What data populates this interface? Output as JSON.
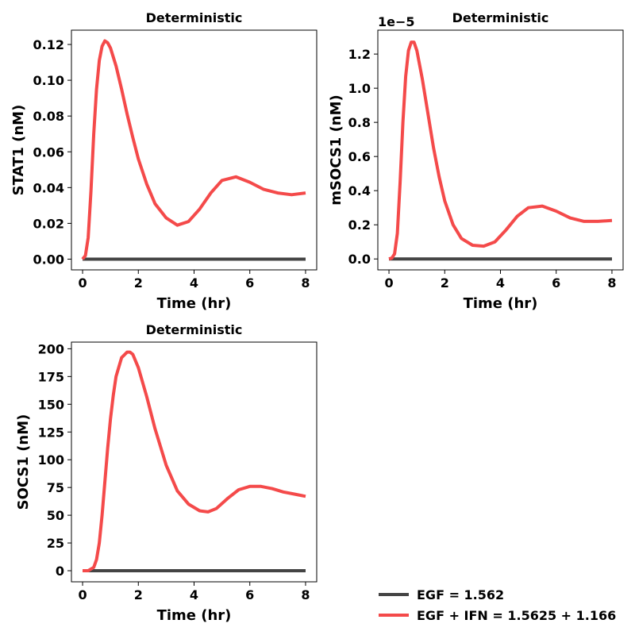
{
  "colors": {
    "egf": "#444444",
    "egf_ifn": "#f44a4a"
  },
  "legend": {
    "items": [
      {
        "label": "EGF = 1.562",
        "color": "#444444"
      },
      {
        "label": "EGF + IFN = 1.5625 + 1.166",
        "color": "#f44a4a"
      }
    ]
  },
  "chart_data": [
    {
      "type": "line",
      "title": "Deterministic",
      "xlabel": "Time (hr)",
      "ylabel": "STAT1 (nM)",
      "xlim": [
        -0.4,
        8.4
      ],
      "ylim": [
        -0.006,
        0.128
      ],
      "xticks": [
        0,
        2,
        4,
        6,
        8
      ],
      "xtick_labels": [
        "0",
        "2",
        "4",
        "6",
        "8"
      ],
      "yticks": [
        0,
        0.02,
        0.04,
        0.06,
        0.08,
        0.1,
        0.12
      ],
      "ytick_labels": [
        "0.00",
        "0.02",
        "0.04",
        "0.06",
        "0.08",
        "0.10",
        "0.12"
      ],
      "offset_text": "",
      "series": [
        {
          "name": "EGF = 1.562",
          "x": [
            0,
            8
          ],
          "y": [
            0,
            0
          ]
        },
        {
          "name": "EGF + IFN = 1.5625 + 1.166",
          "x": [
            0,
            0.1,
            0.2,
            0.3,
            0.4,
            0.5,
            0.6,
            0.7,
            0.8,
            0.9,
            1.0,
            1.2,
            1.4,
            1.6,
            1.8,
            2.0,
            2.3,
            2.6,
            3.0,
            3.4,
            3.8,
            4.2,
            4.6,
            5.0,
            5.5,
            6.0,
            6.5,
            7.0,
            7.5,
            8.0
          ],
          "y": [
            0,
            0.002,
            0.012,
            0.038,
            0.07,
            0.095,
            0.111,
            0.119,
            0.122,
            0.121,
            0.118,
            0.108,
            0.095,
            0.081,
            0.068,
            0.056,
            0.042,
            0.031,
            0.023,
            0.019,
            0.021,
            0.028,
            0.037,
            0.044,
            0.046,
            0.043,
            0.039,
            0.037,
            0.036,
            0.037
          ]
        }
      ]
    },
    {
      "type": "line",
      "title": "Deterministic",
      "xlabel": "Time (hr)",
      "ylabel": "mSOCS1 (nM)",
      "xlim": [
        -0.4,
        8.4
      ],
      "ylim": [
        -0.064,
        1.34
      ],
      "xticks": [
        0,
        2,
        4,
        6,
        8
      ],
      "xtick_labels": [
        "0",
        "2",
        "4",
        "6",
        "8"
      ],
      "yticks": [
        0,
        0.2,
        0.4,
        0.6,
        0.8,
        1.0,
        1.2
      ],
      "ytick_labels": [
        "0.0",
        "0.2",
        "0.4",
        "0.6",
        "0.8",
        "1.0",
        "1.2"
      ],
      "offset_text": "1e−5",
      "series": [
        {
          "name": "EGF = 1.562",
          "x": [
            0,
            8
          ],
          "y": [
            0,
            0
          ]
        },
        {
          "name": "EGF + IFN = 1.5625 + 1.166",
          "x": [
            0,
            0.1,
            0.2,
            0.3,
            0.4,
            0.5,
            0.6,
            0.7,
            0.8,
            0.9,
            1.0,
            1.2,
            1.4,
            1.6,
            1.8,
            2.0,
            2.3,
            2.6,
            3.0,
            3.4,
            3.8,
            4.2,
            4.6,
            5.0,
            5.5,
            6.0,
            6.5,
            7.0,
            7.5,
            8.0
          ],
          "y": [
            0,
            0.005,
            0.03,
            0.15,
            0.45,
            0.8,
            1.07,
            1.22,
            1.27,
            1.27,
            1.22,
            1.05,
            0.85,
            0.65,
            0.48,
            0.34,
            0.2,
            0.12,
            0.08,
            0.075,
            0.1,
            0.17,
            0.25,
            0.3,
            0.31,
            0.28,
            0.24,
            0.22,
            0.22,
            0.225
          ]
        }
      ]
    },
    {
      "type": "line",
      "title": "Deterministic",
      "xlabel": "Time (hr)",
      "ylabel": "SOCS1 (nM)",
      "xlim": [
        -0.4,
        8.4
      ],
      "ylim": [
        -10,
        206
      ],
      "xticks": [
        0,
        2,
        4,
        6,
        8
      ],
      "xtick_labels": [
        "0",
        "2",
        "4",
        "6",
        "8"
      ],
      "yticks": [
        0,
        25,
        50,
        75,
        100,
        125,
        150,
        175,
        200
      ],
      "ytick_labels": [
        "0",
        "25",
        "50",
        "75",
        "100",
        "125",
        "150",
        "175",
        "200"
      ],
      "offset_text": "",
      "series": [
        {
          "name": "EGF = 1.562",
          "x": [
            0,
            8
          ],
          "y": [
            0,
            0
          ]
        },
        {
          "name": "EGF + IFN = 1.5625 + 1.166",
          "x": [
            0,
            0.2,
            0.4,
            0.5,
            0.6,
            0.7,
            0.8,
            0.9,
            1.0,
            1.1,
            1.2,
            1.4,
            1.6,
            1.7,
            1.8,
            2.0,
            2.3,
            2.6,
            3.0,
            3.4,
            3.8,
            4.2,
            4.5,
            4.8,
            5.2,
            5.6,
            6.0,
            6.4,
            6.8,
            7.2,
            7.6,
            8.0
          ],
          "y": [
            0,
            0,
            3,
            10,
            25,
            50,
            80,
            110,
            137,
            158,
            175,
            192,
            197,
            197,
            195,
            183,
            157,
            128,
            95,
            72,
            60,
            54,
            53,
            56,
            65,
            73,
            76,
            76,
            74,
            71,
            69,
            67
          ]
        }
      ]
    }
  ]
}
